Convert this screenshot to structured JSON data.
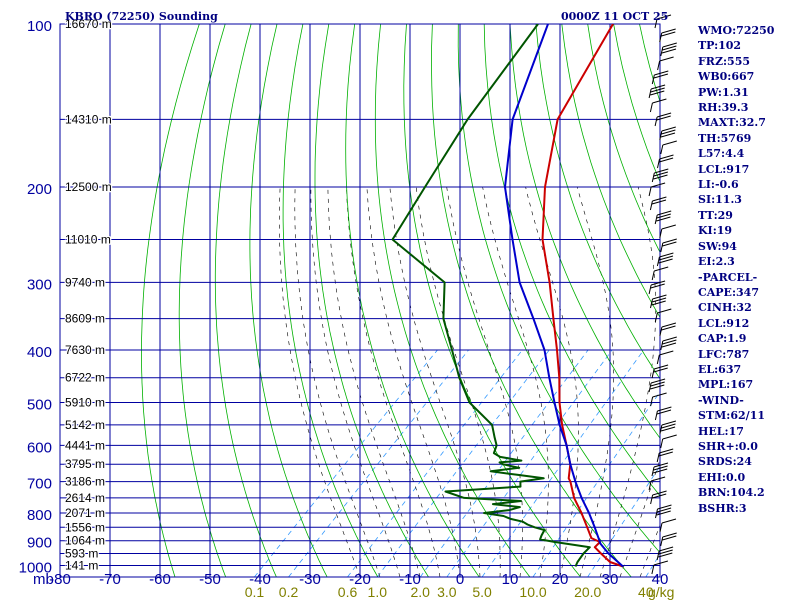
{
  "header": {
    "title": "KBRO (72250) Sounding",
    "datetime": "0000Z 11 OCT 25"
  },
  "indices": [
    "WMO:72250",
    "TP:102",
    "FRZ:555",
    "WB0:667",
    "PW:1.31",
    "RH:39.3",
    "MAXT:32.7",
    "TH:5769",
    "L57:4.4",
    "LCL:917",
    "LI:-0.6",
    "SI:11.3",
    "TT:29",
    "KI:19",
    "SW:94",
    "EI:2.3",
    "-PARCEL-",
    "CAPE:347",
    "CINH:32",
    "LCL:912",
    "CAP:1.9",
    "LFC:787",
    "EL:637",
    "MPL:167",
    "-WIND-",
    "STM:62/11",
    "HEL:17",
    "SHR+:0.0",
    "SRDS:24",
    "EHI:0.0",
    "BRN:104.2",
    "BSHR:3"
  ],
  "colors": {
    "grid": "#0000a0",
    "dry_adiabat": "#00b000",
    "moist_adiabat": "#000000",
    "mixing_ratio": "#3399ff",
    "temperature": "#cc0000",
    "parcel": "#0000cc",
    "dewpoint": "#005500",
    "mixing_label": "#808000"
  },
  "chart_data": {
    "type": "skew-t",
    "pressure_unit": "mb",
    "temperature_unit": "°C",
    "pressure_ticks": [
      100,
      200,
      300,
      400,
      500,
      600,
      700,
      800,
      900,
      1000
    ],
    "temperature_ticks": [
      -80,
      -70,
      -60,
      -50,
      -40,
      -30,
      -20,
      -10,
      0,
      10,
      20,
      30,
      40
    ],
    "xlim": [
      -80,
      40
    ],
    "ylim": [
      1000,
      100
    ],
    "height_labels": [
      {
        "p": 100,
        "label": "16670 m"
      },
      {
        "p": 150,
        "label": "14310 m"
      },
      {
        "p": 200,
        "label": "12500 m"
      },
      {
        "p": 250,
        "label": "11010 m"
      },
      {
        "p": 300,
        "label": "9740 m"
      },
      {
        "p": 350,
        "label": "8609 m"
      },
      {
        "p": 400,
        "label": "7630 m"
      },
      {
        "p": 450,
        "label": "6722 m"
      },
      {
        "p": 500,
        "label": "5910 m"
      },
      {
        "p": 550,
        "label": "5142 m"
      },
      {
        "p": 600,
        "label": "4441 m"
      },
      {
        "p": 650,
        "label": "3795 m"
      },
      {
        "p": 700,
        "label": "3186 m"
      },
      {
        "p": 750,
        "label": "2614 m"
      },
      {
        "p": 800,
        "label": "2071 m"
      },
      {
        "p": 850,
        "label": "1556 m"
      },
      {
        "p": 900,
        "label": "1064 m"
      },
      {
        "p": 950,
        "label": "593 m"
      },
      {
        "p": 1000,
        "label": "141 m"
      }
    ],
    "mixing_ratio_lines": [
      {
        "value": 0.1,
        "label": "0.1"
      },
      {
        "value": 0.2,
        "label": "0.2"
      },
      {
        "value": 0.6,
        "label": "0.6"
      },
      {
        "value": 1.0,
        "label": "1.0"
      },
      {
        "value": 2.0,
        "label": "2.0"
      },
      {
        "value": 3.0,
        "label": "3.0"
      },
      {
        "value": 5.0,
        "label": "5.0"
      },
      {
        "value": 10.0,
        "label": "10.0"
      },
      {
        "value": 20.0,
        "label": "20.0"
      },
      {
        "value": 40.0,
        "label": "40"
      }
    ],
    "mixing_ratio_unit": "g/kg",
    "series": [
      {
        "name": "temperature",
        "points": [
          [
            1004,
            30.5
          ],
          [
            985,
            27
          ],
          [
            950,
            23.5
          ],
          [
            925,
            21
          ],
          [
            905,
            21
          ],
          [
            890,
            18.5
          ],
          [
            850,
            15.5
          ],
          [
            800,
            11.5
          ],
          [
            750,
            7
          ],
          [
            700,
            3
          ],
          [
            690,
            2
          ],
          [
            650,
            -0.5
          ],
          [
            600,
            -5
          ],
          [
            550,
            -10
          ],
          [
            500,
            -15
          ],
          [
            450,
            -20
          ],
          [
            400,
            -26
          ],
          [
            350,
            -33
          ],
          [
            300,
            -41
          ],
          [
            250,
            -51
          ],
          [
            200,
            -61
          ],
          [
            150,
            -72
          ],
          [
            100,
            -80
          ]
        ]
      },
      {
        "name": "parcel",
        "points": [
          [
            1004,
            30.5
          ],
          [
            950,
            25
          ],
          [
            912,
            21.5
          ],
          [
            850,
            17
          ],
          [
            800,
            13
          ],
          [
            750,
            8.5
          ],
          [
            700,
            4
          ],
          [
            650,
            -0.5
          ],
          [
            600,
            -5
          ],
          [
            550,
            -10.5
          ],
          [
            500,
            -16
          ],
          [
            450,
            -22
          ],
          [
            400,
            -28.5
          ],
          [
            350,
            -37
          ],
          [
            300,
            -47
          ],
          [
            250,
            -57
          ],
          [
            200,
            -69
          ],
          [
            150,
            -81
          ],
          [
            100,
            -93
          ]
        ]
      },
      {
        "name": "dewpoint",
        "points": [
          [
            1004,
            21
          ],
          [
            985,
            20.5
          ],
          [
            950,
            20
          ],
          [
            925,
            20
          ],
          [
            905,
            12
          ],
          [
            895,
            8.5
          ],
          [
            880,
            8
          ],
          [
            860,
            7.5
          ],
          [
            850,
            5
          ],
          [
            840,
            3
          ],
          [
            830,
            1.5
          ],
          [
            820,
            -1.5
          ],
          [
            810,
            -3.5
          ],
          [
            800,
            -8
          ],
          [
            790,
            -3.5
          ],
          [
            780,
            -2
          ],
          [
            770,
            -8
          ],
          [
            760,
            -3
          ],
          [
            750,
            -15
          ],
          [
            730,
            -20
          ],
          [
            715,
            -6
          ],
          [
            700,
            -7
          ],
          [
            690,
            -3
          ],
          [
            680,
            -9
          ],
          [
            670,
            -15
          ],
          [
            660,
            -10
          ],
          [
            650,
            -14
          ],
          [
            645,
            -15
          ],
          [
            640,
            -11
          ],
          [
            630,
            -16
          ],
          [
            620,
            -18
          ],
          [
            600,
            -19
          ],
          [
            580,
            -21
          ],
          [
            550,
            -24
          ],
          [
            500,
            -33
          ],
          [
            450,
            -40
          ],
          [
            400,
            -47
          ],
          [
            350,
            -55
          ],
          [
            300,
            -62
          ],
          [
            250,
            -81
          ],
          [
            200,
            -85
          ],
          [
            150,
            -90
          ],
          [
            100,
            -95
          ]
        ]
      }
    ]
  }
}
